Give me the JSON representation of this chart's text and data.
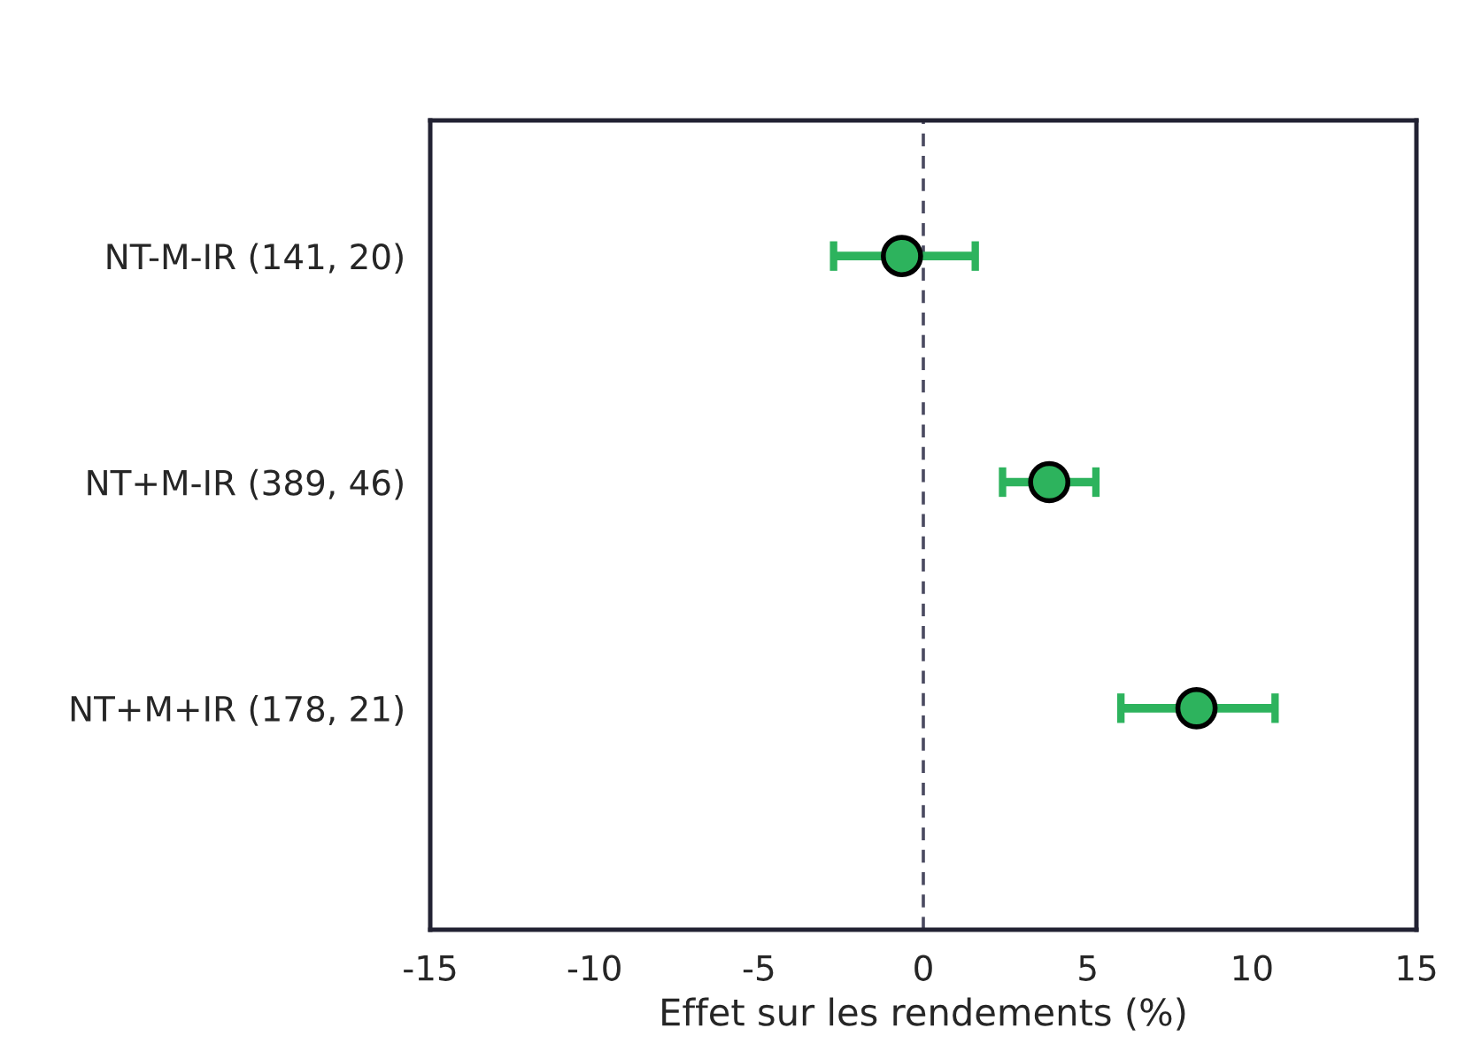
{
  "chart_data": {
    "type": "scatter",
    "orientation": "horizontal",
    "xlabel": "Effet sur les rendements (%)",
    "categories": [
      "NT-M-IR (141, 20)",
      "NT+M-IR (389, 46)",
      "NT+M+IR (178, 21)"
    ],
    "values": [
      -0.65,
      3.83,
      8.31
    ],
    "color": "#2db35d",
    "errors": [
      [
        -2.73,
        1.58
      ],
      [
        2.41,
        5.25
      ],
      [
        6.01,
        10.7
      ]
    ],
    "marker": "circle",
    "xlim": [
      -15,
      15
    ],
    "xticks": [
      -15,
      -10,
      -5,
      0,
      5,
      10,
      15
    ],
    "ref_lines": [
      {
        "axis": "x",
        "value": 0,
        "color": "#4a4a60",
        "line_style": "dashed"
      }
    ],
    "grid": false,
    "legend": false
  }
}
